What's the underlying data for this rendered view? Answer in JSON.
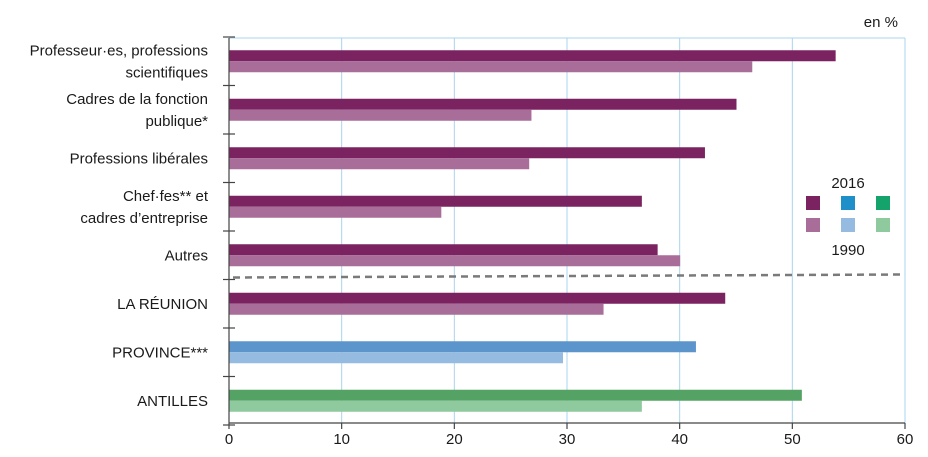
{
  "chart_data": {
    "type": "bar",
    "orientation": "horizontal",
    "unit_label": "en %",
    "categories": [
      {
        "lines": [
          "Professeur·es, professions",
          "scientifiques"
        ],
        "v2016": 53.8,
        "v1990": 46.4,
        "group": "purple"
      },
      {
        "lines": [
          "Cadres de la fonction",
          "publique*"
        ],
        "v2016": 45.0,
        "v1990": 26.8,
        "group": "purple"
      },
      {
        "lines": [
          "Professions libérales"
        ],
        "v2016": 42.2,
        "v1990": 26.6,
        "group": "purple"
      },
      {
        "lines": [
          "Chef·fes** et",
          "cadres d’entreprise"
        ],
        "v2016": 36.6,
        "v1990": 18.8,
        "group": "purple"
      },
      {
        "lines": [
          "Autres"
        ],
        "v2016": 38.0,
        "v1990": 40.0,
        "group": "purple"
      },
      {
        "lines": [
          "LA RÉUNION"
        ],
        "v2016": 44.0,
        "v1990": 33.2,
        "group": "purple"
      },
      {
        "lines": [
          "PROVINCE***"
        ],
        "v2016": 41.4,
        "v1990": 29.6,
        "group": "blue"
      },
      {
        "lines": [
          "ANTILLES"
        ],
        "v2016": 50.8,
        "v1990": 36.6,
        "group": "green"
      }
    ],
    "xlim": [
      0,
      60
    ],
    "xticks": [
      0,
      10,
      20,
      30,
      40,
      50,
      60
    ],
    "grid": "vertical",
    "legend": {
      "label_2016": "2016",
      "label_1990": "1990",
      "position": "right",
      "swatches_2016": [
        "#7b2360",
        "#1f8fc9",
        "#14a36b"
      ],
      "swatches_1990": [
        "#a86d98",
        "#95bce0",
        "#8fc99e"
      ]
    },
    "colors": {
      "purple": {
        "v2016": "#7b2360",
        "v1990": "#a86d98"
      },
      "blue": {
        "v2016": "#5b95cc",
        "v1990": "#95bce0"
      },
      "green": {
        "v2016": "#55a364",
        "v1990": "#8fc99e"
      }
    },
    "gridline_color": "#a9d4ec",
    "separator_after_index": 4
  }
}
